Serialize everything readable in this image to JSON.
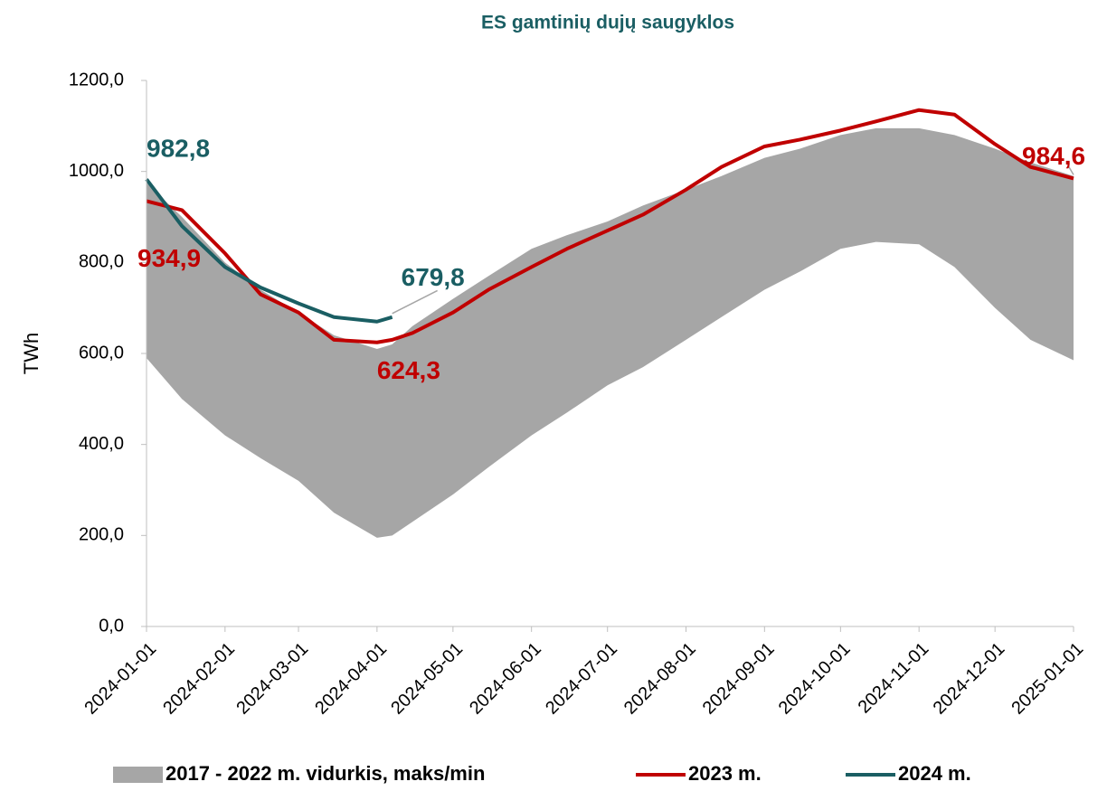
{
  "chart_data": {
    "type": "line",
    "title": "ES gamtinių dujų saugyklos",
    "ylabel": "TWh",
    "x": [
      "2024-01-01",
      "2024-01-15",
      "2024-02-01",
      "2024-02-15",
      "2024-03-01",
      "2024-03-15",
      "2024-04-01",
      "2024-04-07",
      "2024-04-15",
      "2024-05-01",
      "2024-05-15",
      "2024-06-01",
      "2024-06-15",
      "2024-07-01",
      "2024-07-15",
      "2024-08-01",
      "2024-08-15",
      "2024-09-01",
      "2024-09-15",
      "2024-10-01",
      "2024-10-15",
      "2024-11-01",
      "2024-11-15",
      "2024-12-01",
      "2024-12-15",
      "2025-01-01"
    ],
    "series": [
      {
        "name": "2017 - 2022 m. vidurkis, maks/min",
        "color": "#a6a6a6",
        "kind": "band",
        "upper": [
          975,
          900,
          800,
          740,
          690,
          640,
          610,
          620,
          660,
          720,
          770,
          830,
          860,
          890,
          925,
          960,
          990,
          1030,
          1050,
          1080,
          1095,
          1095,
          1080,
          1050,
          1020,
          990
        ],
        "lower": [
          590,
          500,
          420,
          370,
          320,
          250,
          195,
          200,
          230,
          290,
          350,
          420,
          470,
          530,
          570,
          630,
          680,
          740,
          780,
          830,
          845,
          840,
          790,
          700,
          630,
          585
        ]
      },
      {
        "name": "2023 m.",
        "color": "#c00000",
        "values": [
          934.9,
          915,
          820,
          730,
          690,
          630,
          624.3,
          630,
          645,
          690,
          740,
          790,
          830,
          870,
          905,
          960,
          1010,
          1055,
          1070,
          1090,
          1110,
          1135,
          1125,
          1060,
          1010,
          984.6
        ],
        "value_labels": [
          "934,9",
          null,
          null,
          null,
          null,
          null,
          "624,3",
          null,
          null,
          null,
          null,
          null,
          null,
          null,
          null,
          null,
          null,
          null,
          null,
          null,
          null,
          null,
          null,
          null,
          null,
          "984,6"
        ]
      },
      {
        "name": "2024 m.",
        "color": "#1a5e63",
        "values": [
          982.8,
          880,
          790,
          745,
          710,
          680,
          670,
          679.8,
          null,
          null,
          null,
          null,
          null,
          null,
          null,
          null,
          null,
          null,
          null,
          null,
          null,
          null,
          null,
          null,
          null,
          null
        ],
        "value_labels": [
          "982,8",
          null,
          null,
          null,
          null,
          null,
          null,
          "679,8",
          null,
          null,
          null,
          null,
          null,
          null,
          null,
          null,
          null,
          null,
          null,
          null,
          null,
          null,
          null,
          null,
          null,
          null
        ]
      }
    ],
    "xlim": [
      "2024-01-01",
      "2025-01-01"
    ],
    "xticks": [
      "2024-01-01",
      "2024-02-01",
      "2024-03-01",
      "2024-04-01",
      "2024-05-01",
      "2024-06-01",
      "2024-07-01",
      "2024-08-01",
      "2024-09-01",
      "2024-10-01",
      "2024-11-01",
      "2024-12-01",
      "2025-01-01"
    ],
    "ylim": [
      0,
      1200
    ],
    "yticks": [
      {
        "value": 0,
        "label": "0,0"
      },
      {
        "value": 200,
        "label": "200,0"
      },
      {
        "value": 400,
        "label": "400,0"
      },
      {
        "value": 600,
        "label": "600,0"
      },
      {
        "value": 800,
        "label": "800,0"
      },
      {
        "value": 1000,
        "label": "1000,0"
      },
      {
        "value": 1200,
        "label": "1200,0"
      }
    ],
    "legend": "bottom"
  }
}
